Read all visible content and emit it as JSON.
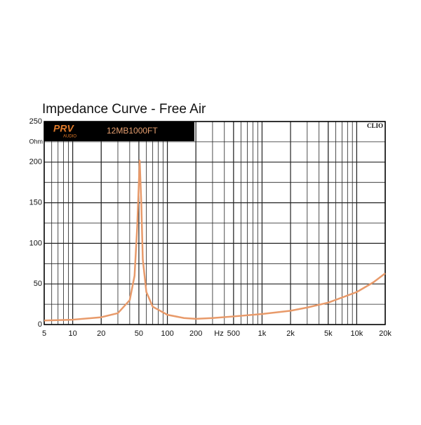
{
  "chart_data": {
    "type": "line",
    "title": "Impedance Curve - Free Air",
    "brand": "PRV",
    "brand_sub": "AUDIO",
    "model": "12MB1000FT",
    "corner_label": "CLIO",
    "y_label": "Ohm",
    "x_label": "Hz",
    "xscale": "log",
    "grid": true,
    "xlim": [
      5,
      20000
    ],
    "ylim": [
      0,
      250
    ],
    "xticks": [
      5,
      10,
      20,
      50,
      100,
      200,
      500,
      {
        "value": 1000,
        "label": "1k"
      },
      {
        "value": 2000,
        "label": "2k"
      },
      {
        "value": 5000,
        "label": "5k"
      },
      {
        "value": 10000,
        "label": "10k"
      },
      {
        "value": 20000,
        "label": "20k"
      }
    ],
    "yticks": [
      0,
      50,
      100,
      150,
      200,
      250
    ],
    "x": [
      5,
      10,
      20,
      30,
      40,
      45,
      48,
      51,
      53,
      55,
      60,
      70,
      100,
      150,
      200,
      300,
      500,
      1000,
      2000,
      3000,
      5000,
      10000,
      15000,
      20000
    ],
    "series": [
      {
        "color": "#e89a6a",
        "values": [
          5,
          6,
          9,
          14,
          30,
          60,
          120,
          202,
          150,
          80,
          40,
          22,
          12,
          8,
          7,
          8,
          10,
          13,
          17,
          21,
          27,
          40,
          52,
          63
        ]
      }
    ]
  }
}
